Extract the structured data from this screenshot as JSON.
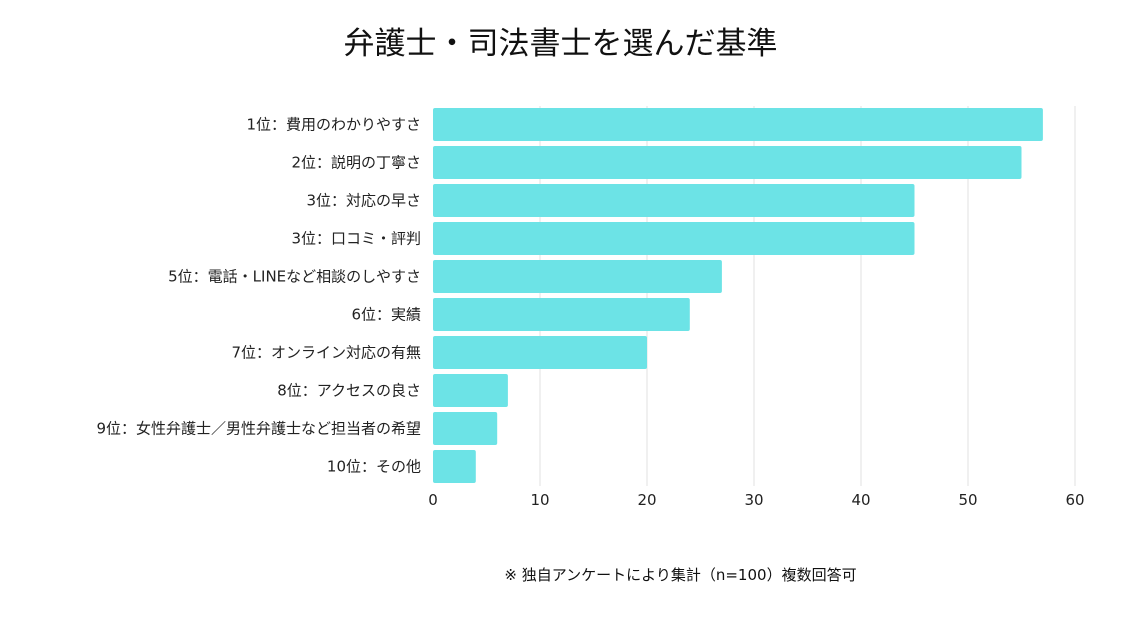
{
  "chart_data": {
    "type": "bar",
    "orientation": "horizontal",
    "title": "弁護士・司法書士を選んだ基準",
    "categories": [
      "1位：費用のわかりやすさ",
      "2位：説明の丁寧さ",
      "3位：対応の早さ",
      "3位：口コミ・評判",
      "5位：電話・LINEなど相談のしやすさ",
      "6位：実績",
      "7位：オンライン対応の有無",
      "8位：アクセスの良さ",
      "9位：女性弁護士／男性弁護士など担当者の希望",
      "10位：その他"
    ],
    "values": [
      57,
      55,
      45,
      45,
      27,
      24,
      20,
      7,
      6,
      4
    ],
    "xlim": [
      0,
      60
    ],
    "xticks": [
      "0",
      "10",
      "20",
      "30",
      "40",
      "50",
      "60"
    ],
    "xlabel": "",
    "ylabel": "",
    "grid": "vertical",
    "bar_color": "#6ce3e6",
    "note": "※ 独自アンケートにより集計（n=100）複数回答可"
  }
}
